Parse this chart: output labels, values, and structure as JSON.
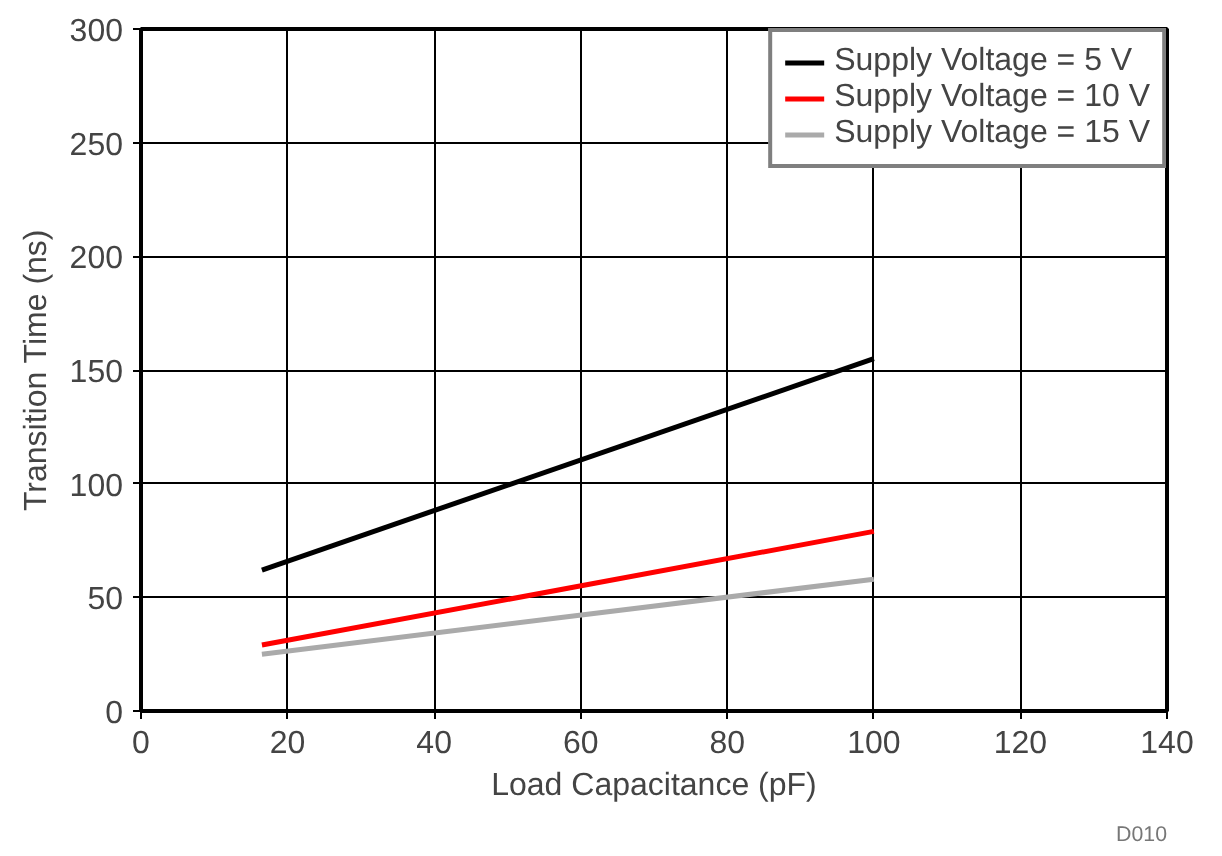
{
  "chart_data": {
    "type": "line",
    "xlabel": "Load Capacitance (pF)",
    "ylabel": "Transition Time (ns)",
    "xlim": [
      0,
      140
    ],
    "xticks": [
      0,
      20,
      40,
      60,
      80,
      100,
      120,
      140
    ],
    "ylim": [
      0,
      300
    ],
    "yticks": [
      0,
      50,
      100,
      150,
      200,
      250,
      300
    ],
    "grid": true,
    "legend": "top right",
    "line_style": "solid",
    "annotations": [
      "D010"
    ],
    "x": [
      16.5,
      100
    ],
    "series": [
      {
        "name": "Supply Voltage = 5 V",
        "color": "#000000",
        "values": [
          62,
          155
        ]
      },
      {
        "name": "Supply Voltage = 10 V",
        "color": "#ff0000",
        "values": [
          29,
          79
        ]
      },
      {
        "name": "Supply Voltage = 15 V",
        "color": "#aaaaaa",
        "values": [
          25,
          58
        ]
      }
    ]
  }
}
